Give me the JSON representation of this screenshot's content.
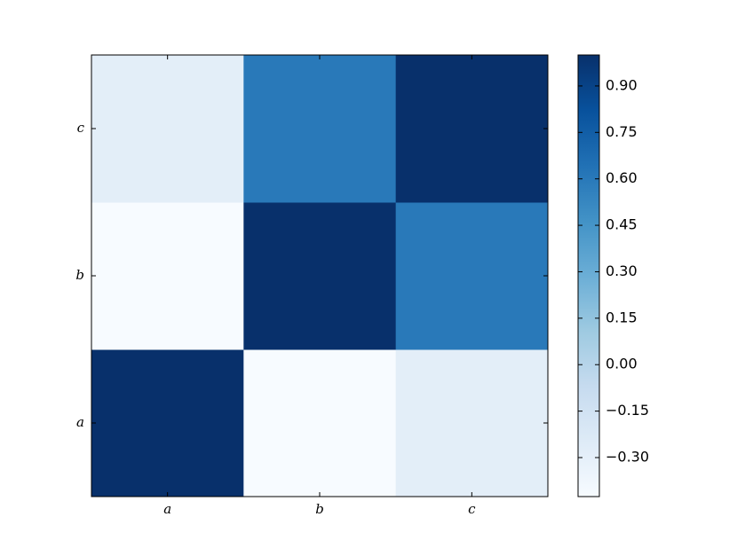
{
  "chart_data": {
    "type": "heatmap",
    "x_categories": [
      "a",
      "b",
      "c"
    ],
    "y_categories": [
      "a",
      "b",
      "c"
    ],
    "values": [
      [
        1.0,
        -0.426,
        -0.28
      ],
      [
        -0.426,
        1.0,
        0.6
      ],
      [
        -0.28,
        0.6,
        1.0
      ]
    ],
    "colormap": "Blues",
    "zlim": [
      -0.426,
      1.0
    ],
    "zticks": [
      {
        "value": -0.3,
        "label": "−0.30"
      },
      {
        "value": -0.15,
        "label": "−0.15"
      },
      {
        "value": 0,
        "label": "0.00"
      },
      {
        "value": 0.15,
        "label": "0.15"
      },
      {
        "value": 0.3,
        "label": "0.30"
      },
      {
        "value": 0.45,
        "label": "0.45"
      },
      {
        "value": 0.6,
        "label": "0.60"
      },
      {
        "value": 0.75,
        "label": "0.75"
      },
      {
        "value": 0.9,
        "label": "0.90"
      }
    ]
  }
}
